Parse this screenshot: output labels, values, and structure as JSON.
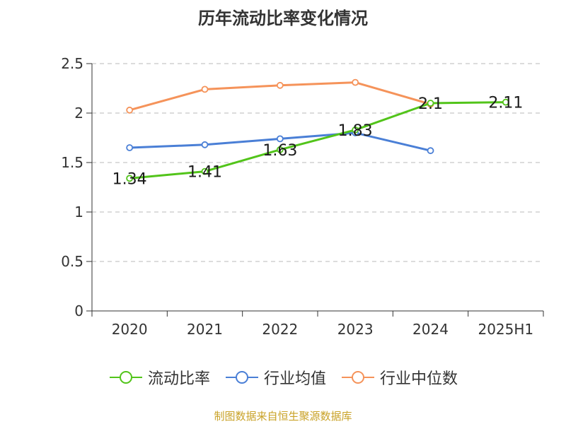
{
  "title": "历年流动比率变化情况",
  "source_note": "制图数据来自恒生聚源数据库",
  "legend": [
    {
      "label": "流动比率",
      "color": "#52c41a"
    },
    {
      "label": "行业均值",
      "color": "#4a7fd6"
    },
    {
      "label": "行业中位数",
      "color": "#f5935a"
    }
  ],
  "chart_data": {
    "type": "line",
    "title": "历年流动比率变化情况",
    "categories": [
      "2020",
      "2021",
      "2022",
      "2023",
      "2024",
      "2025H1"
    ],
    "ylim": [
      0,
      2.5
    ],
    "yticks": [
      0,
      0.5,
      1,
      1.5,
      2,
      2.5
    ],
    "ytick_labels": [
      "0",
      "0.5",
      "1",
      "1.5",
      "2",
      "2.5"
    ],
    "grid": "horizontal dashed",
    "legend_position": "bottom",
    "series": [
      {
        "name": "流动比率",
        "color": "#52c41a",
        "values": [
          1.34,
          1.41,
          1.63,
          1.83,
          2.1,
          2.11
        ],
        "labels": [
          "1.34",
          "1.41",
          "1.63",
          "1.83",
          "2.1",
          "2.11"
        ]
      },
      {
        "name": "行业均值",
        "color": "#4a7fd6",
        "values": [
          1.65,
          1.68,
          1.74,
          1.8,
          1.62,
          null
        ]
      },
      {
        "name": "行业中位数",
        "color": "#f5935a",
        "values": [
          2.03,
          2.24,
          2.28,
          2.31,
          2.09,
          null
        ]
      }
    ]
  }
}
